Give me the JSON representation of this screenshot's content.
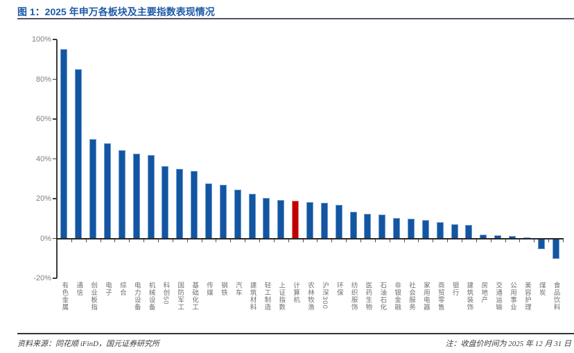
{
  "title": "图 1：2025 年申万各板块及主要指数表现情况",
  "footer": {
    "source": "资料来源：同花顺 iFinD，国元证券研究所",
    "note": "注：收盘价时间为 2025 年 12 月 31 日"
  },
  "chart_data": {
    "type": "bar",
    "title": "2025 年申万各板块及主要指数表现情况",
    "categories": [
      "有色金属",
      "通信",
      "创业板指",
      "电子",
      "综合",
      "电力设备",
      "机械设备",
      "科创50",
      "国防军工",
      "基础化工",
      "传媒",
      "钢铁",
      "汽车",
      "建筑材料",
      "轻工制造",
      "上证指数",
      "计算机",
      "农林牧渔",
      "沪深300",
      "环保",
      "纺织服饰",
      "医药生物",
      "石油石化",
      "非银金融",
      "社会服务",
      "家用电器",
      "商贸零售",
      "银行",
      "建筑装饰",
      "房地产",
      "交通运输",
      "公用事业",
      "美容护理",
      "煤炭",
      "食品饮料"
    ],
    "values": [
      95,
      85,
      50,
      48,
      44.5,
      42.5,
      42,
      36.5,
      35,
      34,
      27.5,
      27,
      24.5,
      22.5,
      20.5,
      19.2,
      18.8,
      18.3,
      18,
      16.8,
      13.5,
      12.2,
      11.9,
      10.1,
      9.9,
      9.1,
      8.3,
      7.3,
      6.8,
      2.0,
      1.4,
      1.3,
      0.5,
      -5.5,
      -10.3
    ],
    "unit": "%",
    "highlight_index": 16,
    "highlight_category": "计算机",
    "ylim": [
      -20,
      100
    ],
    "ytick_values": [
      100,
      80,
      60,
      40,
      20,
      0,
      -20
    ],
    "ytick_labels": [
      "100%",
      "80%",
      "60%",
      "40%",
      "20%",
      "0%",
      "-20%"
    ],
    "grid": false,
    "legend": "none",
    "colors": {
      "bar": "#1355a0",
      "bar_border": "#6c9bd4",
      "highlight": "#c00000",
      "highlight_border": "#e57f7f",
      "title": "#1e5aa8"
    }
  }
}
